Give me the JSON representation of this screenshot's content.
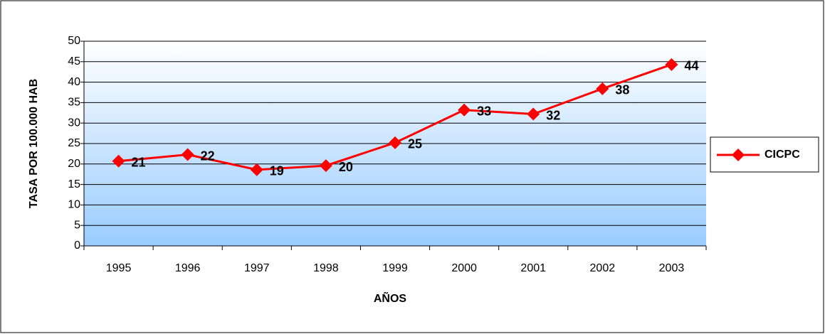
{
  "chart_data": {
    "type": "line",
    "xlabel": "AÑOS",
    "ylabel": "TASA POR 100.000 HAB",
    "categories": [
      "1995",
      "1996",
      "1997",
      "1998",
      "1999",
      "2000",
      "2001",
      "2002",
      "2003"
    ],
    "series": [
      {
        "name": "CICPC",
        "color": "#ff0000",
        "values": [
          20.7,
          22.3,
          18.6,
          19.6,
          25.2,
          33.2,
          32.2,
          38.4,
          44.3
        ],
        "value_labels": [
          "21",
          "22",
          "19",
          "20",
          "25",
          "33",
          "32",
          "38",
          "44"
        ]
      }
    ],
    "ylim": [
      0,
      50
    ],
    "yticks": [
      0,
      5,
      10,
      15,
      20,
      25,
      30,
      35,
      40,
      45,
      50
    ],
    "grid": true,
    "legend": "right"
  }
}
